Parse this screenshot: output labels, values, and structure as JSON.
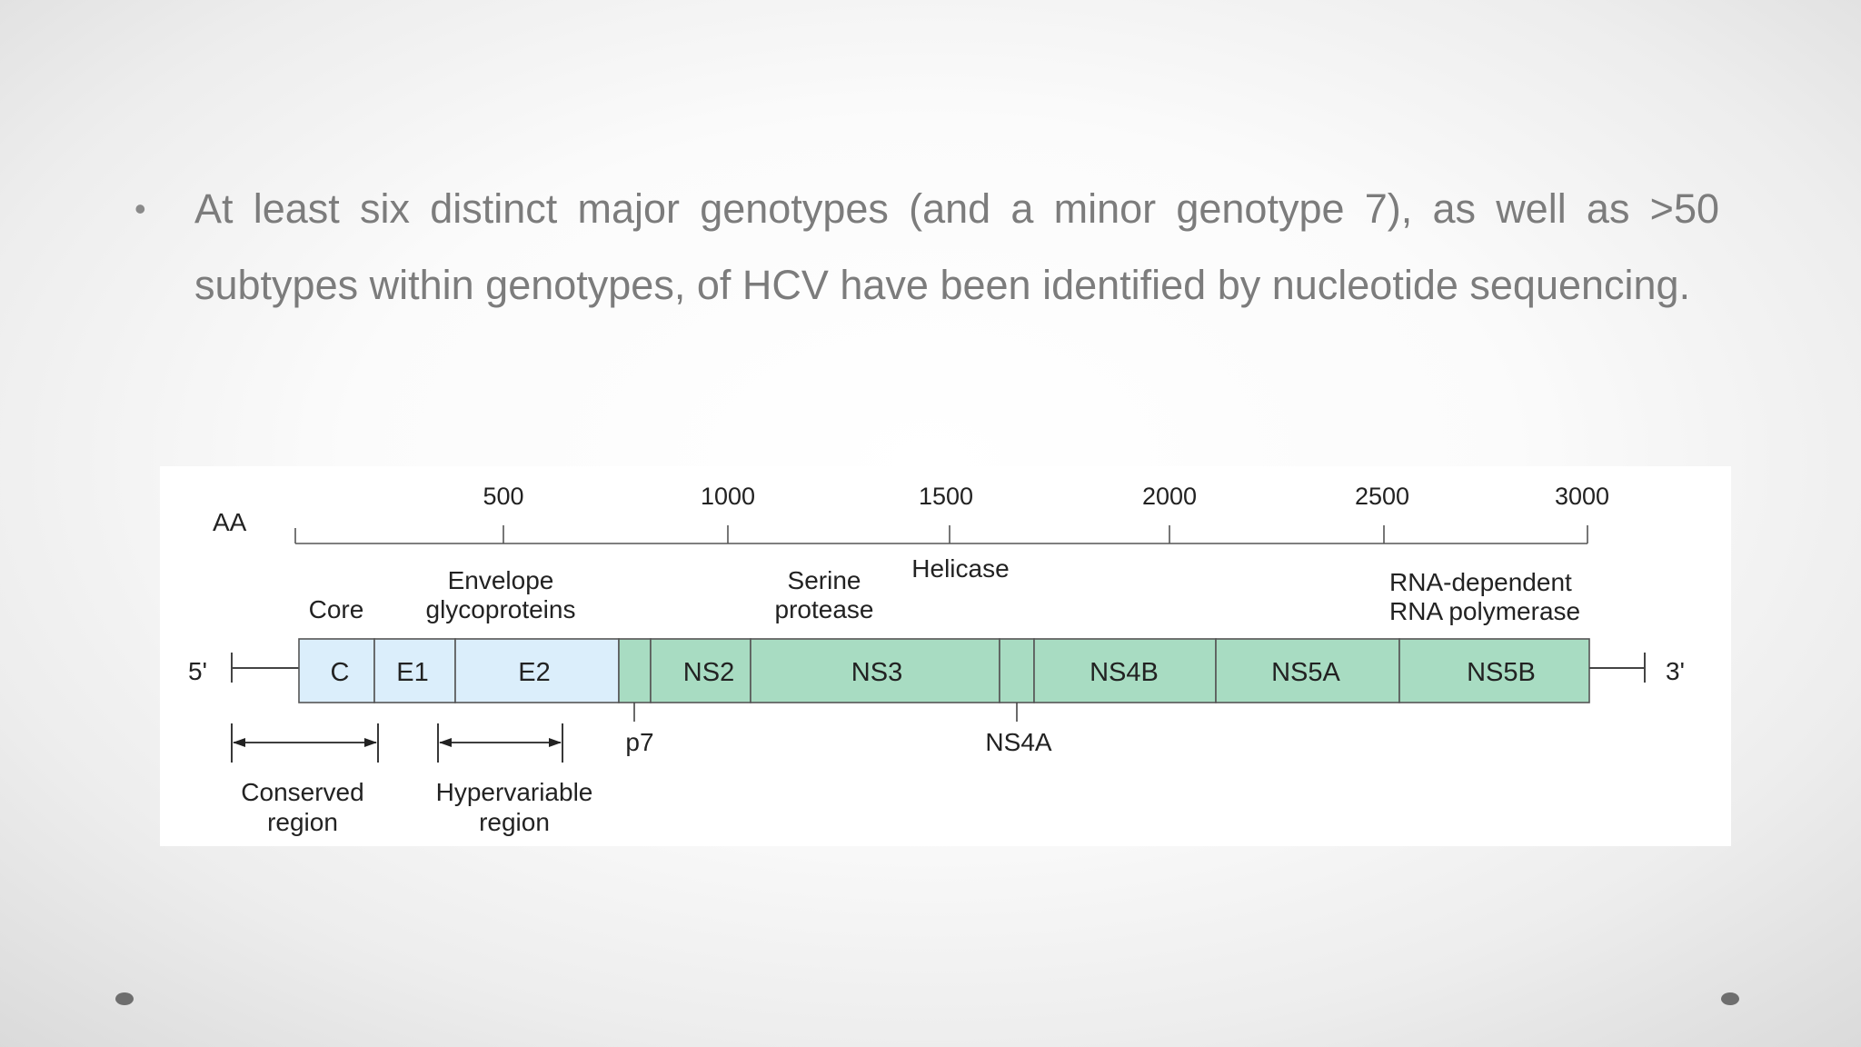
{
  "slide": {
    "bullet_symbol": "•",
    "bullet_text": "At least six distinct major genotypes (and a minor genotype 7), as well as >50 subtypes within genotypes, of HCV have been identified by nucleotide sequencing."
  },
  "figure": {
    "axis": {
      "label": "AA",
      "ticks": [
        "500",
        "1000",
        "1500",
        "2000",
        "2500",
        "3000"
      ]
    },
    "group_labels": {
      "core": "Core",
      "envelope_line1": "Envelope",
      "envelope_line2": "glycoproteins",
      "serine_line1": "Serine",
      "serine_line2": "protease",
      "helicase": "Helicase",
      "rdrp_line1": "RNA-dependent",
      "rdrp_line2": "RNA polymerase"
    },
    "ends": {
      "five_prime": "5'",
      "three_prime": "3'"
    },
    "segments": [
      "C",
      "E1",
      "E2",
      "NS2",
      "NS3",
      "NS4B",
      "NS5A",
      "NS5B"
    ],
    "below_labels": {
      "p7": "p7",
      "ns4a": "NS4A"
    },
    "regions": {
      "conserved_line1": "Conserved",
      "conserved_line2": "region",
      "hypervariable_line1": "Hypervariable",
      "hypervariable_line2": "region"
    },
    "colors": {
      "structural": "#dbeefb",
      "nonstructural": "#a8dcc2",
      "outline": "#555555"
    }
  }
}
